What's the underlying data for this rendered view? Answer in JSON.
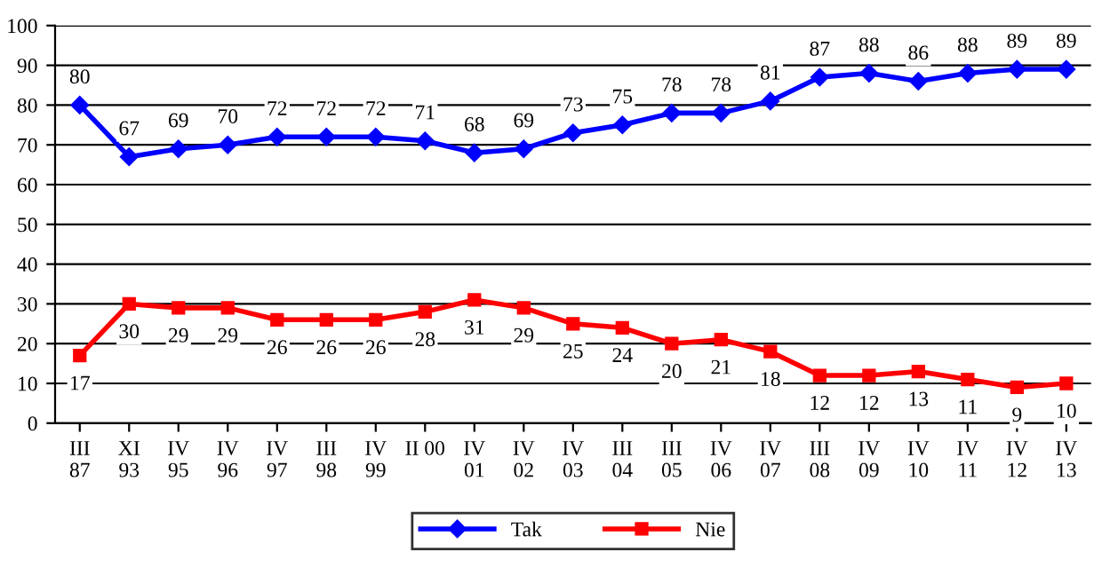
{
  "chart_data": {
    "type": "line",
    "categories": [
      "III\n87",
      "XI\n93",
      "IV\n95",
      "IV\n96",
      "IV\n97",
      "III\n98",
      "IV\n99",
      "II 00",
      "IV\n01",
      "IV\n02",
      "IV\n03",
      "III\n04",
      "III\n05",
      "IV\n06",
      "IV\n07",
      "III\n08",
      "IV\n09",
      "IV\n10",
      "IV\n11",
      "IV\n12",
      "IV\n13"
    ],
    "series": [
      {
        "name": "Tak",
        "color": "#0000ff",
        "marker": "diamond",
        "values": [
          80,
          67,
          69,
          70,
          72,
          72,
          72,
          71,
          68,
          69,
          73,
          75,
          78,
          78,
          81,
          87,
          88,
          86,
          88,
          89,
          89
        ]
      },
      {
        "name": "Nie",
        "color": "#ff0000",
        "marker": "square",
        "values": [
          17,
          30,
          29,
          29,
          26,
          26,
          26,
          28,
          31,
          29,
          25,
          24,
          20,
          21,
          18,
          12,
          12,
          13,
          11,
          9,
          10
        ]
      }
    ],
    "ylim": [
      0,
      100
    ],
    "yticks": [
      0,
      10,
      20,
      30,
      40,
      50,
      60,
      70,
      80,
      90,
      100
    ],
    "grid": "y",
    "legend": "bottom",
    "data_labels": true,
    "line_style": "solid"
  }
}
